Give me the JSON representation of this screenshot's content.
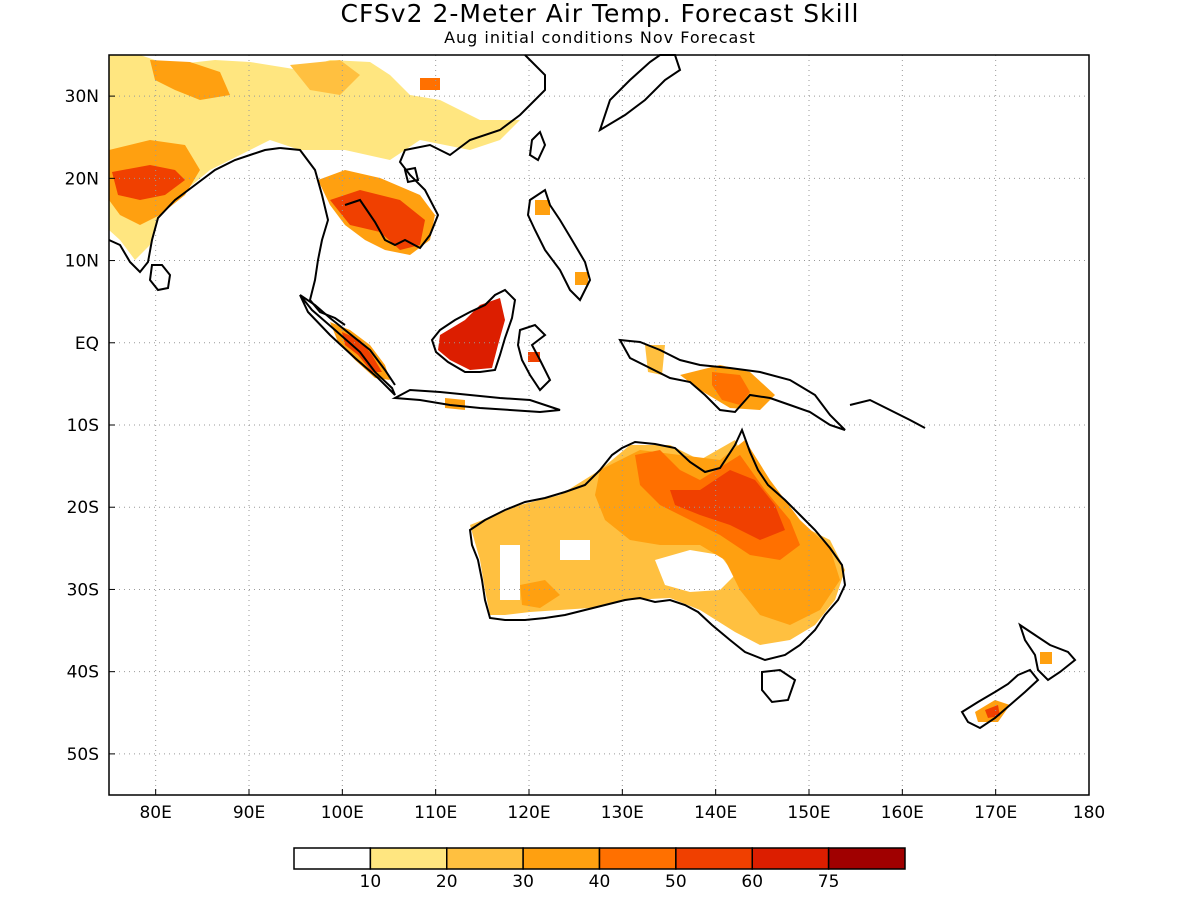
{
  "title": "CFSv2 2-Meter Air Temp. Forecast Skill",
  "subtitle": "Aug initial conditions  Nov Forecast",
  "map": {
    "lon_range": [
      75,
      180
    ],
    "lat_range": [
      -55,
      35
    ],
    "x_ticks": [
      {
        "value": 80,
        "label": "80E"
      },
      {
        "value": 90,
        "label": "90E"
      },
      {
        "value": 100,
        "label": "100E"
      },
      {
        "value": 110,
        "label": "110E"
      },
      {
        "value": 120,
        "label": "120E"
      },
      {
        "value": 130,
        "label": "130E"
      },
      {
        "value": 140,
        "label": "140E"
      },
      {
        "value": 150,
        "label": "150E"
      },
      {
        "value": 160,
        "label": "160E"
      },
      {
        "value": 170,
        "label": "170E"
      },
      {
        "value": 180,
        "label": "180"
      }
    ],
    "y_ticks": [
      {
        "value": 30,
        "label": "30N"
      },
      {
        "value": 20,
        "label": "20N"
      },
      {
        "value": 10,
        "label": "10N"
      },
      {
        "value": 0,
        "label": "EQ"
      },
      {
        "value": -10,
        "label": "10S"
      },
      {
        "value": -20,
        "label": "20S"
      },
      {
        "value": -30,
        "label": "30S"
      },
      {
        "value": -40,
        "label": "40S"
      },
      {
        "value": -50,
        "label": "50S"
      }
    ],
    "grid": "dotted",
    "colors": {
      "frame": "#000000",
      "coast": "#000000",
      "grid": "#999999",
      "c10": "#ffe680",
      "c20": "#ffc040",
      "c30": "#ffa010",
      "c40": "#ff7000",
      "c50": "#f04000",
      "c60": "#dc1e00",
      "c75": "#a00000"
    }
  },
  "colorbar": {
    "colors": [
      "#ffffff",
      "#ffe680",
      "#ffc040",
      "#ffa010",
      "#ff7000",
      "#f04000",
      "#dc1e00",
      "#a00000"
    ],
    "labels": [
      "10",
      "20",
      "30",
      "40",
      "50",
      "60",
      "75"
    ]
  }
}
